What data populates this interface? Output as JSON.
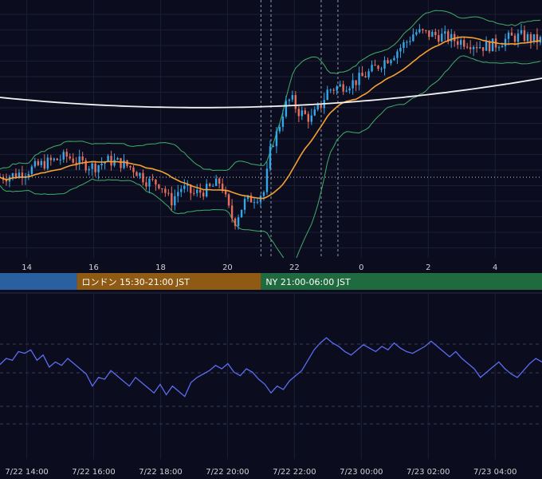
{
  "chart_data": [
    {
      "type": "candlestick",
      "title": "",
      "x_tick_labels": [
        "14",
        "16",
        "18",
        "20",
        "22",
        "0",
        "2",
        "4"
      ],
      "x_tick_hours": [
        14,
        16,
        18,
        20,
        22,
        24,
        26,
        28
      ],
      "x_range_hours": [
        13.2,
        29.4
      ],
      "grid": true,
      "overlays": [
        "Bollinger Bands",
        "Moving Average (orange)",
        "Long Moving Average (white)"
      ],
      "colors": {
        "up": "#35a7e8",
        "down": "#e56f5c",
        "ma": "#f5a032",
        "long_ma": "#f2f2f2",
        "bands": "#3fae68"
      },
      "close_path_index": [
        [
          13.2,
          0.3
        ],
        [
          13.6,
          0.31
        ],
        [
          14.0,
          0.33
        ],
        [
          14.4,
          0.36
        ],
        [
          14.8,
          0.38
        ],
        [
          15.2,
          0.4
        ],
        [
          15.6,
          0.37
        ],
        [
          16.0,
          0.35
        ],
        [
          16.4,
          0.38
        ],
        [
          16.8,
          0.37
        ],
        [
          17.2,
          0.34
        ],
        [
          17.6,
          0.28
        ],
        [
          18.0,
          0.27
        ],
        [
          18.3,
          0.18
        ],
        [
          18.6,
          0.25
        ],
        [
          19.0,
          0.22
        ],
        [
          19.4,
          0.24
        ],
        [
          19.8,
          0.28
        ],
        [
          20.0,
          0.16
        ],
        [
          20.2,
          0.08
        ],
        [
          20.5,
          0.18
        ],
        [
          20.9,
          0.21
        ],
        [
          21.1,
          0.23
        ],
        [
          21.3,
          0.45
        ],
        [
          21.5,
          0.52
        ],
        [
          21.7,
          0.64
        ],
        [
          21.9,
          0.68
        ],
        [
          22.1,
          0.62
        ],
        [
          22.5,
          0.58
        ],
        [
          22.8,
          0.65
        ],
        [
          23.0,
          0.72
        ],
        [
          23.4,
          0.74
        ],
        [
          23.8,
          0.76
        ],
        [
          24.2,
          0.8
        ],
        [
          24.6,
          0.85
        ],
        [
          25.0,
          0.9
        ],
        [
          25.4,
          0.96
        ],
        [
          25.6,
          1.0
        ],
        [
          26.0,
          0.99
        ],
        [
          26.4,
          0.98
        ],
        [
          26.8,
          0.96
        ],
        [
          27.2,
          0.95
        ],
        [
          27.6,
          0.93
        ],
        [
          28.0,
          0.94
        ],
        [
          28.4,
          0.97
        ],
        [
          28.8,
          0.98
        ],
        [
          29.2,
          0.96
        ]
      ],
      "horizontal_reference": "dotted line at current level"
    },
    {
      "type": "line",
      "title": "",
      "x_tick_labels": [
        "7/22 14:00",
        "7/22 16:00",
        "7/22 18:00",
        "7/22 20:00",
        "7/22 22:00",
        "7/23 00:00",
        "7/23 02:00",
        "7/23 04:00"
      ],
      "series_color": "#5b6cf0",
      "grid": true,
      "values_index": [
        0.55,
        0.62,
        0.6,
        0.7,
        0.68,
        0.72,
        0.6,
        0.66,
        0.52,
        0.58,
        0.54,
        0.62,
        0.56,
        0.5,
        0.44,
        0.3,
        0.4,
        0.38,
        0.48,
        0.42,
        0.36,
        0.3,
        0.4,
        0.34,
        0.28,
        0.22,
        0.32,
        0.2,
        0.3,
        0.24,
        0.18,
        0.34,
        0.4,
        0.44,
        0.48,
        0.54,
        0.5,
        0.56,
        0.46,
        0.42,
        0.5,
        0.46,
        0.38,
        0.32,
        0.22,
        0.3,
        0.26,
        0.36,
        0.42,
        0.48,
        0.6,
        0.72,
        0.8,
        0.86,
        0.8,
        0.76,
        0.7,
        0.66,
        0.72,
        0.78,
        0.74,
        0.7,
        0.76,
        0.72,
        0.8,
        0.74,
        0.7,
        0.68,
        0.72,
        0.76,
        0.82,
        0.76,
        0.7,
        0.64,
        0.7,
        0.62,
        0.56,
        0.5,
        0.4,
        0.46,
        0.52,
        0.58,
        0.5,
        0.44,
        0.4,
        0.48,
        0.56,
        0.62,
        0.58
      ]
    }
  ],
  "sessions": [
    {
      "label": "",
      "color": "#2a5fa0",
      "start_hour": 13.2,
      "end_hour": 15.5
    },
    {
      "label": "ロンドン 15:30-21:00 JST",
      "color": "#8f5a13",
      "start_hour": 15.5,
      "end_hour": 21.0
    },
    {
      "label": "NY 21:00-06:00 JST",
      "color": "#1f6a3f",
      "start_hour": 21.0,
      "end_hour": 29.4
    }
  ]
}
